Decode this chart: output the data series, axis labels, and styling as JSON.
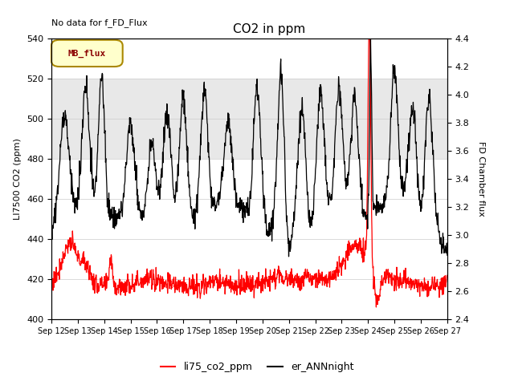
{
  "title": "CO2 in ppm",
  "no_data_text": "No data for f_FD_Flux",
  "ylabel_left": "LI7500 CO2 (ppm)",
  "ylabel_right": "FD Chamber flux",
  "ylim_left": [
    400,
    540
  ],
  "ylim_right": [
    2.4,
    4.4
  ],
  "yticks_left": [
    400,
    420,
    440,
    460,
    480,
    500,
    520,
    540
  ],
  "yticks_right": [
    2.4,
    2.6,
    2.8,
    3.0,
    3.2,
    3.4,
    3.6,
    3.8,
    4.0,
    4.2,
    4.4
  ],
  "xlabel_ticks": [
    "Sep 12",
    "Sep 13",
    "Sep 14",
    "Sep 15",
    "Sep 16",
    "Sep 17",
    "Sep 18",
    "Sep 19",
    "Sep 20",
    "Sep 21",
    "Sep 22",
    "Sep 23",
    "Sep 24",
    "Sep 25",
    "Sep 26",
    "Sep 27"
  ],
  "shaded_region": [
    480,
    520
  ],
  "shaded_color": "#e8e8e8",
  "legend_box_label": "MB_flux",
  "legend_box_facecolor": "#ffffcc",
  "legend_box_edgecolor": "#aa8800",
  "legend_line1_label": "li75_co2_ppm",
  "legend_line1_color": "red",
  "legend_line2_label": "er_ANNnight",
  "legend_line2_color": "black",
  "background_color": "#ffffff",
  "grid_color": "#cccccc"
}
